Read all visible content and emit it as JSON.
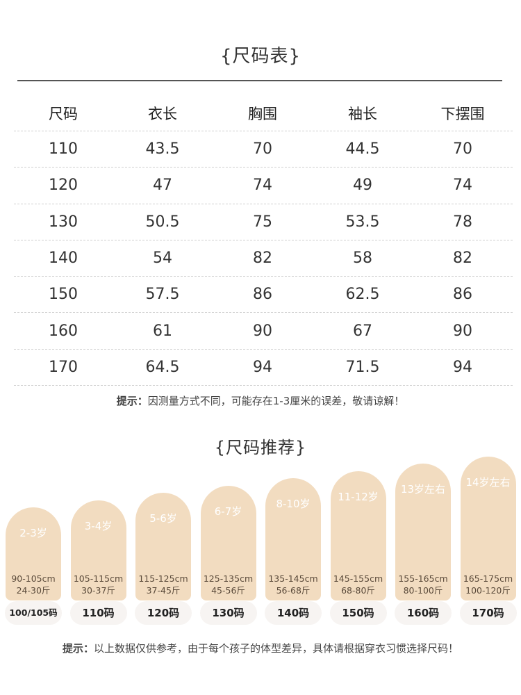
{
  "size_table": {
    "title": "{尺码表}",
    "headers": [
      "尺码",
      "衣长",
      "胸围",
      "袖长",
      "下摆围"
    ],
    "rows": [
      [
        "110",
        "43.5",
        "70",
        "44.5",
        "70"
      ],
      [
        "120",
        "47",
        "74",
        "49",
        "74"
      ],
      [
        "130",
        "50.5",
        "75",
        "53.5",
        "78"
      ],
      [
        "140",
        "54",
        "82",
        "58",
        "82"
      ],
      [
        "150",
        "57.5",
        "86",
        "62.5",
        "86"
      ],
      [
        "160",
        "61",
        "90",
        "67",
        "90"
      ],
      [
        "170",
        "64.5",
        "94",
        "71.5",
        "94"
      ]
    ],
    "note_label": "提示：",
    "note_text": "因测量方式不同，可能存在1-3厘米的误差，敬请谅解！"
  },
  "recommend": {
    "title": "{尺码推荐}",
    "items": [
      {
        "age": "2-3岁",
        "height": "90-105cm",
        "weight": "24-30斤",
        "size": "100/105码"
      },
      {
        "age": "3-4岁",
        "height": "105-115cm",
        "weight": "30-37斤",
        "size": "110码"
      },
      {
        "age": "5-6岁",
        "height": "115-125cm",
        "weight": "37-45斤",
        "size": "120码"
      },
      {
        "age": "6-7岁",
        "height": "125-135cm",
        "weight": "45-56斤",
        "size": "130码"
      },
      {
        "age": "8-10岁",
        "height": "135-145cm",
        "weight": "56-68斤",
        "size": "140码"
      },
      {
        "age": "11-12岁",
        "height": "145-155cm",
        "weight": "68-80斤",
        "size": "150码"
      },
      {
        "age": "13岁左右",
        "height": "155-165cm",
        "weight": "80-100斤",
        "size": "160码"
      },
      {
        "age": "14岁左右",
        "height": "165-175cm",
        "weight": "100-120斤",
        "size": "170码"
      }
    ],
    "note_label": "提示：",
    "note_text": "以上数据仅供参考，由于每个孩子的体型差异，具体请根据穿衣习惯选择尺码！"
  },
  "colors": {
    "pill": "#f2dcc0",
    "badge": "#f7f4f2",
    "text": "#333333"
  }
}
